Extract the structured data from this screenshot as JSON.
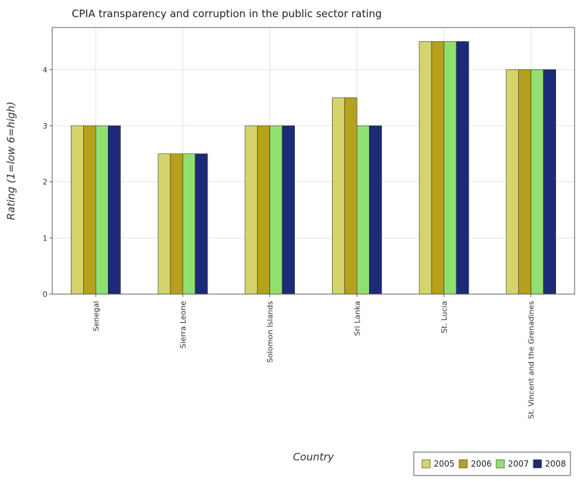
{
  "chart_data": {
    "type": "bar",
    "title": "CPIA transparency and corruption in the public sector rating",
    "xlabel": "Country",
    "ylabel": "Rating (1=low 6=high)",
    "categories": [
      "Senegal",
      "Sierra Leone",
      "Solomon Islands",
      "Sri Lanka",
      "St. Lucia",
      "St. Vincent and the Grenadines"
    ],
    "series": [
      {
        "name": "2005",
        "color": "#d4d36e",
        "values": [
          3.0,
          2.5,
          3.0,
          3.5,
          4.5,
          4.0
        ]
      },
      {
        "name": "2006",
        "color": "#b5a11b",
        "values": [
          3.0,
          2.5,
          3.0,
          3.5,
          4.5,
          4.0
        ]
      },
      {
        "name": "2007",
        "color": "#90e070",
        "values": [
          3.0,
          2.5,
          3.0,
          3.0,
          4.5,
          4.0
        ]
      },
      {
        "name": "2008",
        "color": "#1c2a78",
        "values": [
          3.0,
          2.5,
          3.0,
          3.0,
          4.5,
          4.0
        ]
      }
    ],
    "ylim": [
      0,
      4.75
    ],
    "yticks": [
      0,
      1,
      2,
      3,
      4
    ],
    "grid": true,
    "legend_position": "bottom-right"
  }
}
